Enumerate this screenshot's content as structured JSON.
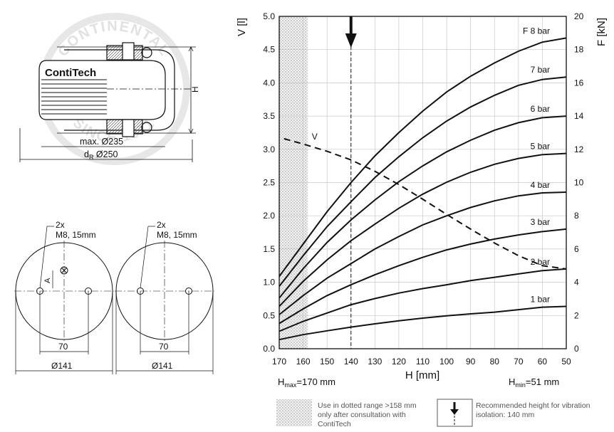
{
  "drawing": {
    "brand": "ContiTech",
    "stamp_text": "CONTINENTAL",
    "stamp_year": "SINCE 1871",
    "dim_h": "H",
    "dim_max": "max. Ø235",
    "dim_dr_d": "d",
    "dim_dr_r": "R",
    "dim_dr_val": " Ø250",
    "left_view": {
      "count": "2x",
      "thread": "M8, 15mm",
      "a": "A",
      "spacing": "70",
      "dia": "Ø141"
    },
    "right_view": {
      "count": "2x",
      "thread": "M8, 15mm",
      "spacing": "70",
      "dia": "Ø141"
    }
  },
  "chart_data": {
    "type": "line",
    "xlabel": "H [mm]",
    "ylabel_left": "V [l]",
    "ylabel_right": "F [kN]",
    "x_ticks": [
      170,
      160,
      150,
      140,
      130,
      120,
      110,
      100,
      90,
      80,
      70,
      60,
      50
    ],
    "xlim": [
      170,
      50
    ],
    "ylim_left": [
      0,
      5
    ],
    "ylim_right": [
      0,
      20
    ],
    "y_ticks_left": [
      "0.0",
      "0.5",
      "1.0",
      "1.5",
      "2.0",
      "2.5",
      "3.0",
      "3.5",
      "4.0",
      "4.5",
      "5.0"
    ],
    "y_ticks_right": [
      "0",
      "2",
      "4",
      "6",
      "8",
      "10",
      "12",
      "14",
      "16",
      "18",
      "20"
    ],
    "grid": true,
    "hmax_main": "H",
    "hmax_sub": "max",
    "hmax_val": "=170 mm",
    "hmin_main": "H",
    "hmin_sub": "min",
    "hmin_val": "=51 mm",
    "dotted_range": [
      170,
      158
    ],
    "recommended_height": 140,
    "force_series": [
      {
        "name": "1 bar",
        "x": [
          170,
          160,
          150,
          140,
          130,
          120,
          110,
          100,
          90,
          80,
          70,
          60,
          50
        ],
        "y": [
          0.55,
          0.85,
          1.08,
          1.3,
          1.5,
          1.68,
          1.84,
          1.98,
          2.1,
          2.2,
          2.35,
          2.5,
          2.55
        ]
      },
      {
        "name": "2 bar",
        "x": [
          170,
          160,
          150,
          140,
          130,
          120,
          110,
          100,
          90,
          80,
          70,
          60,
          50
        ],
        "y": [
          1.05,
          1.65,
          2.15,
          2.65,
          3.02,
          3.35,
          3.62,
          3.85,
          4.1,
          4.3,
          4.5,
          4.7,
          4.8
        ]
      },
      {
        "name": "3 bar",
        "x": [
          170,
          160,
          150,
          140,
          130,
          120,
          110,
          100,
          90,
          80,
          70,
          60,
          50
        ],
        "y": [
          1.52,
          2.4,
          3.2,
          3.85,
          4.45,
          5.0,
          5.5,
          5.95,
          6.3,
          6.6,
          6.85,
          7.05,
          7.2
        ]
      },
      {
        "name": "4 bar",
        "x": [
          170,
          160,
          150,
          140,
          130,
          120,
          110,
          100,
          90,
          80,
          70,
          60,
          50
        ],
        "y": [
          2.05,
          3.2,
          4.25,
          5.12,
          6.0,
          6.75,
          7.45,
          8.0,
          8.5,
          8.9,
          9.2,
          9.38,
          9.42
        ]
      },
      {
        "name": "5 bar",
        "x": [
          170,
          160,
          150,
          140,
          130,
          120,
          110,
          100,
          90,
          80,
          70,
          60,
          50
        ],
        "y": [
          2.55,
          4.05,
          5.35,
          6.5,
          7.5,
          8.45,
          9.3,
          10.02,
          10.62,
          11.1,
          11.45,
          11.68,
          11.75
        ]
      },
      {
        "name": "6 bar",
        "x": [
          170,
          160,
          150,
          140,
          130,
          120,
          110,
          100,
          90,
          80,
          70,
          60,
          50
        ],
        "y": [
          3.05,
          4.82,
          6.4,
          7.75,
          8.95,
          10.05,
          11.0,
          11.85,
          12.55,
          13.15,
          13.6,
          13.9,
          14.0
        ]
      },
      {
        "name": "7 bar",
        "x": [
          170,
          160,
          150,
          140,
          130,
          120,
          110,
          100,
          90,
          80,
          70,
          60,
          50
        ],
        "y": [
          3.75,
          5.6,
          7.35,
          8.85,
          10.3,
          11.55,
          12.7,
          13.7,
          14.55,
          15.25,
          15.85,
          16.2,
          16.35
        ]
      },
      {
        "name": "F 8 bar",
        "x": [
          170,
          160,
          150,
          140,
          130,
          120,
          110,
          100,
          90,
          80,
          70,
          60,
          50
        ],
        "y": [
          4.35,
          6.3,
          8.25,
          10.0,
          11.6,
          13.0,
          14.3,
          15.45,
          16.4,
          17.2,
          17.9,
          18.45,
          18.7
        ]
      }
    ],
    "volume_series": {
      "name": "V",
      "x": [
        168,
        160,
        150,
        140,
        130,
        120,
        110,
        100,
        90,
        80,
        70,
        60,
        50
      ],
      "y": [
        3.16,
        3.08,
        2.97,
        2.84,
        2.67,
        2.47,
        2.25,
        2.02,
        1.8,
        1.59,
        1.4,
        1.25,
        1.2
      ]
    }
  },
  "legend": {
    "dotted_note": [
      "Use in dotted range >158 mm",
      "only after consultation with",
      "ContiTech"
    ],
    "arrow_note": [
      "Recommended height for vibration",
      "isolation: 140 mm"
    ]
  }
}
